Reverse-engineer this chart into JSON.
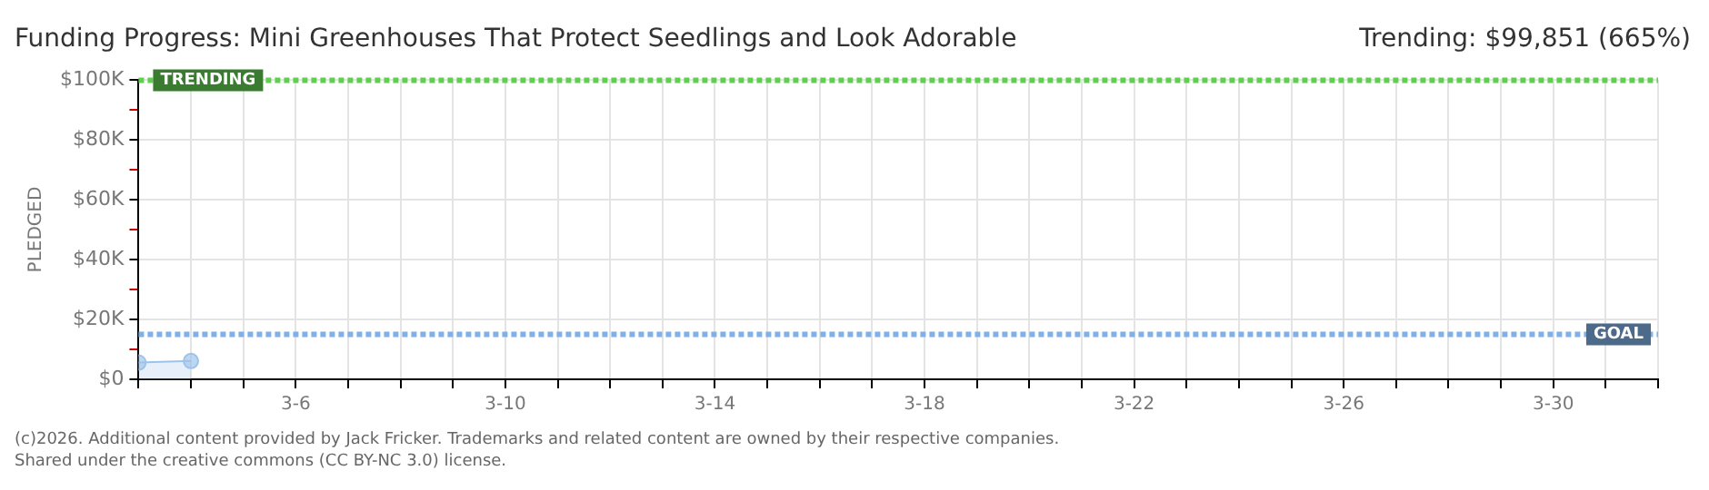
{
  "chart_data": {
    "type": "area",
    "title": "Funding Progress: Mini Greenhouses That Protect Seedlings and Look Adorable",
    "ylabel": "PLEDGED",
    "x": [
      "--03-03",
      "--03-04"
    ],
    "series": [
      {
        "color": "#9ec3ea",
        "values": [
          5600,
          6100
        ]
      }
    ],
    "marker": "circle",
    "xlim": [
      "--03-03",
      "--04-01"
    ],
    "xticks": [
      {
        "value": "--03-03",
        "label": null
      },
      {
        "value": "--03-04",
        "label": null
      },
      {
        "value": "--03-05",
        "label": null
      },
      {
        "value": "--03-06",
        "label": "3-6"
      },
      {
        "value": "--03-07",
        "label": null
      },
      {
        "value": "--03-08",
        "label": null
      },
      {
        "value": "--03-09",
        "label": null
      },
      {
        "value": "--03-10",
        "label": "3-10"
      },
      {
        "value": "--03-11",
        "label": null
      },
      {
        "value": "--03-12",
        "label": null
      },
      {
        "value": "--03-13",
        "label": null
      },
      {
        "value": "--03-14",
        "label": "3-14"
      },
      {
        "value": "--03-15",
        "label": null
      },
      {
        "value": "--03-16",
        "label": null
      },
      {
        "value": "--03-17",
        "label": null
      },
      {
        "value": "--03-18",
        "label": "3-18"
      },
      {
        "value": "--03-19",
        "label": null
      },
      {
        "value": "--03-20",
        "label": null
      },
      {
        "value": "--03-21",
        "label": null
      },
      {
        "value": "--03-22",
        "label": "3-22"
      },
      {
        "value": "--03-23",
        "label": null
      },
      {
        "value": "--03-24",
        "label": null
      },
      {
        "value": "--03-25",
        "label": null
      },
      {
        "value": "--03-26",
        "label": "3-26"
      },
      {
        "value": "--03-27",
        "label": null
      },
      {
        "value": "--03-28",
        "label": null
      },
      {
        "value": "--03-29",
        "label": null
      },
      {
        "value": "--03-30",
        "label": "3-30"
      },
      {
        "value": "--03-31",
        "label": null
      },
      {
        "value": "--04-01",
        "label": null
      }
    ],
    "ylim": [
      0,
      100000
    ],
    "yticks": [
      {
        "value": 0,
        "label": "$0"
      },
      {
        "value": 10000,
        "label": null
      },
      {
        "value": 20000,
        "label": "$20K"
      },
      {
        "value": 30000,
        "label": null
      },
      {
        "value": 40000,
        "label": "$40K"
      },
      {
        "value": 50000,
        "label": null
      },
      {
        "value": 60000,
        "label": "$60K"
      },
      {
        "value": 70000,
        "label": null
      },
      {
        "value": 80000,
        "label": "$80K"
      },
      {
        "value": 90000,
        "label": null
      },
      {
        "value": 100000,
        "label": "$100K"
      }
    ],
    "grid": true,
    "legend": false,
    "ref_lines": [
      {
        "axis": "y",
        "value": 99851,
        "label": "TRENDING",
        "color": "#5fcf4f",
        "line_style": "dotted"
      },
      {
        "axis": "y",
        "value": 15000,
        "label": "GOAL",
        "color": "#7fb0e6",
        "line_style": "dotted"
      }
    ],
    "annotations": [
      "Trending: $99,851 (665%)",
      "(c)2026. Additional content provided by Jack Fricker. Trademarks and related content are owned by their respective companies.",
      "Shared under the creative commons (CC BY-NC 3.0) license."
    ]
  }
}
